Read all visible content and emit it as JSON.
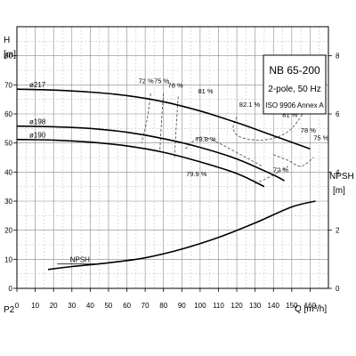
{
  "chart_data": {
    "type": "line",
    "y_axis_label": "H",
    "y_axis_unit": "[m]",
    "x_axis_label": "Q [m³/h]",
    "p2_label": "P2",
    "right_axis_label": "NPSH",
    "right_axis_unit": "[m]",
    "xlim": [
      0,
      170
    ],
    "ylim": [
      0,
      90
    ],
    "right_ylim": [
      0,
      9
    ],
    "x_ticks": [
      "0",
      "10",
      "20",
      "30",
      "40",
      "50",
      "60",
      "70",
      "80",
      "90",
      "100",
      "110",
      "120",
      "130",
      "140",
      "150",
      "160"
    ],
    "y_ticks": [
      "0",
      "10",
      "20",
      "30",
      "40",
      "50",
      "60",
      "70",
      "80"
    ],
    "right_ticks": [
      "0",
      "2",
      "4",
      "6",
      "8"
    ],
    "info": {
      "model": "NB 65-200",
      "spec": "2-pole, 50 Hz",
      "standard": "ISO 9906 Annex A"
    },
    "series": [
      {
        "name": "ø217",
        "label": "ø217",
        "x": [
          0,
          20,
          40,
          60,
          80,
          100,
          120,
          140,
          160
        ],
        "y": [
          68.5,
          68.2,
          67.5,
          66.3,
          64.2,
          61.0,
          57.0,
          52.5,
          48.0
        ]
      },
      {
        "name": "ø198",
        "label": "ø198",
        "x": [
          0,
          20,
          40,
          60,
          80,
          100,
          120,
          140,
          146
        ],
        "y": [
          55.8,
          55.6,
          55.0,
          53.7,
          51.5,
          48.5,
          44.5,
          39.0,
          37.0
        ]
      },
      {
        "name": "ø190",
        "label": "ø190",
        "x": [
          0,
          20,
          40,
          60,
          80,
          100,
          120,
          135
        ],
        "y": [
          51.2,
          51.0,
          50.3,
          49.0,
          46.8,
          43.5,
          39.5,
          35.0
        ]
      }
    ],
    "npsh": {
      "name": "NPSH",
      "label": "NPSH",
      "x": [
        17,
        30,
        50,
        70,
        90,
        110,
        130,
        150,
        163
      ],
      "y": [
        0.65,
        0.75,
        0.88,
        1.05,
        1.35,
        1.75,
        2.25,
        2.8,
        3.0
      ]
    },
    "efficiency_labels": [
      {
        "text": "72 %",
        "x": 70.5,
        "y": 70.5
      },
      {
        "text": "75 %",
        "x": 79,
        "y": 70.5
      },
      {
        "text": "78 %",
        "x": 86.5,
        "y": 69
      },
      {
        "text": "81 %",
        "x": 103,
        "y": 67
      },
      {
        "text": "82.1 %",
        "x": 127,
        "y": 62.5
      },
      {
        "text": "81 %",
        "x": 149,
        "y": 59
      },
      {
        "text": "78 %",
        "x": 159,
        "y": 53.5
      },
      {
        "text": "75 %",
        "x": 166,
        "y": 51
      },
      {
        "text": "78.8 %",
        "x": 103,
        "y": 50.5
      },
      {
        "text": "79.9 %",
        "x": 98,
        "y": 38.5
      },
      {
        "text": "72 %",
        "x": 144,
        "y": 40
      }
    ],
    "iso_efficiency_lines": [
      [
        [
          73,
          67
        ],
        [
          71,
          58
        ],
        [
          68,
          50
        ]
      ],
      [
        [
          80,
          67
        ],
        [
          79,
          58
        ],
        [
          78,
          47
        ]
      ],
      [
        [
          88,
          66
        ],
        [
          87,
          56
        ],
        [
          86,
          45
        ]
      ],
      [
        [
          120,
          59
        ],
        [
          118,
          55
        ],
        [
          122,
          52
        ],
        [
          132,
          51
        ],
        [
          142,
          52
        ],
        [
          150,
          55
        ],
        [
          156,
          60
        ]
      ],
      [
        [
          92,
          48
        ],
        [
          100,
          52
        ],
        [
          110,
          50
        ],
        [
          122,
          46
        ],
        [
          134,
          42
        ]
      ],
      [
        [
          140,
          46
        ],
        [
          148,
          44
        ],
        [
          155,
          42
        ],
        [
          162,
          45
        ]
      ],
      [
        [
          130,
          36
        ],
        [
          140,
          39
        ],
        [
          148,
          42
        ]
      ]
    ]
  }
}
